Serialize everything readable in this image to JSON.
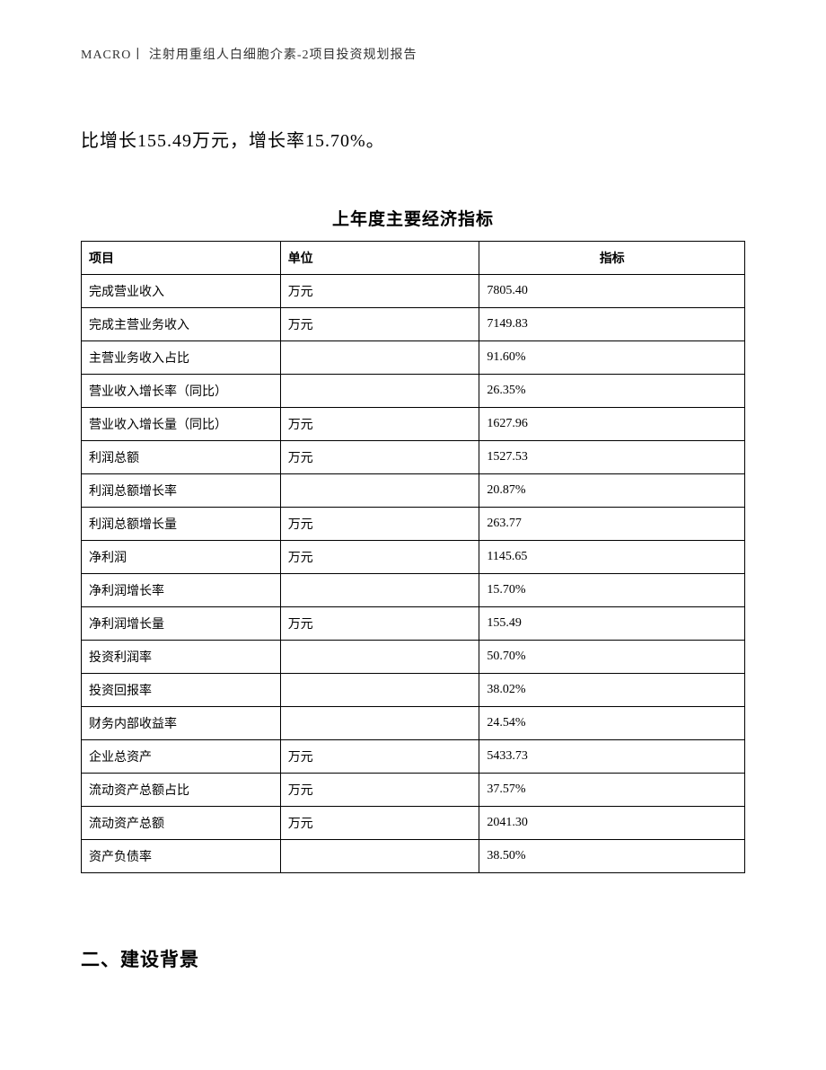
{
  "header": {
    "text": "MACRO丨 注射用重组人白细胞介素-2项目投资规划报告"
  },
  "intro": {
    "text": "比增长155.49万元，增长率15.70%。"
  },
  "table": {
    "title": "上年度主要经济指标",
    "columns": [
      "项目",
      "单位",
      "指标"
    ],
    "rows": [
      {
        "item": "完成营业收入",
        "unit": "万元",
        "value": "7805.40"
      },
      {
        "item": "完成主营业务收入",
        "unit": "万元",
        "value": "7149.83"
      },
      {
        "item": "主营业务收入占比",
        "unit": "",
        "value": "91.60%"
      },
      {
        "item": "营业收入增长率（同比）",
        "unit": "",
        "value": "26.35%"
      },
      {
        "item": "营业收入增长量（同比）",
        "unit": "万元",
        "value": "1627.96"
      },
      {
        "item": "利润总额",
        "unit": "万元",
        "value": "1527.53"
      },
      {
        "item": "利润总额增长率",
        "unit": "",
        "value": "20.87%"
      },
      {
        "item": "利润总额增长量",
        "unit": "万元",
        "value": "263.77"
      },
      {
        "item": "净利润",
        "unit": "万元",
        "value": "1145.65"
      },
      {
        "item": "净利润增长率",
        "unit": "",
        "value": "15.70%"
      },
      {
        "item": "净利润增长量",
        "unit": "万元",
        "value": "155.49"
      },
      {
        "item": "投资利润率",
        "unit": "",
        "value": "50.70%"
      },
      {
        "item": "投资回报率",
        "unit": "",
        "value": "38.02%"
      },
      {
        "item": "财务内部收益率",
        "unit": "",
        "value": "24.54%"
      },
      {
        "item": "企业总资产",
        "unit": "万元",
        "value": "5433.73"
      },
      {
        "item": "流动资产总额占比",
        "unit": "万元",
        "value": "37.57%"
      },
      {
        "item": "流动资产总额",
        "unit": "万元",
        "value": "2041.30"
      },
      {
        "item": "资产负债率",
        "unit": "",
        "value": "38.50%"
      }
    ]
  },
  "section": {
    "heading": "二、建设背景"
  }
}
